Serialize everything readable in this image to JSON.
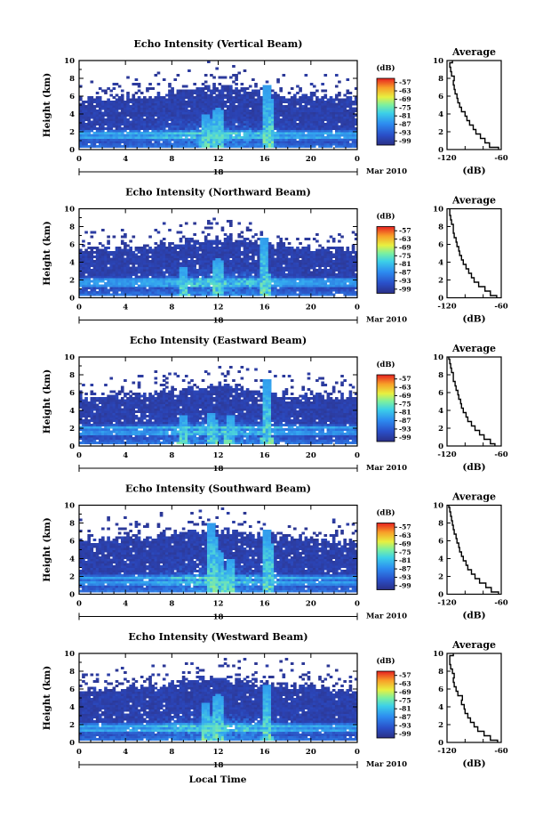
{
  "xlabel": "Local Time",
  "date_label": "Mar 2010",
  "chart_data": [
    {
      "type": "heatmap",
      "title": "Echo Intensity (Vertical Beam)",
      "ylabel": "Height (km)",
      "xlim": [
        0,
        24
      ],
      "ylim": [
        0,
        10
      ],
      "xticks": [
        "0",
        "4",
        "8",
        "12",
        "16",
        "20",
        "0"
      ],
      "yticks": [
        "0",
        "2",
        "4",
        "6",
        "8",
        "10"
      ],
      "day_label": "18",
      "colorbar": {
        "unit": "(dB)",
        "ticks": [
          "-57",
          "-63",
          "-69",
          "-75",
          "-81",
          "-87",
          "-93",
          "-99"
        ]
      },
      "profile": {
        "title": "Average",
        "xlabel": "(dB)",
        "xticks": [
          "-120",
          "-60"
        ],
        "xlim": [
          -120,
          -60
        ],
        "ylim": [
          0,
          10
        ],
        "yticks": [
          "0",
          "2",
          "4",
          "6",
          "8",
          "10"
        ],
        "height": [
          0,
          0.5,
          1,
          1.5,
          2,
          2.5,
          3,
          3.5,
          4,
          4.5,
          5,
          5.5,
          6,
          6.5,
          7,
          7.5,
          8,
          8.5,
          9,
          9.5,
          10
        ],
        "db": [
          -63,
          -73,
          -78,
          -83,
          -88,
          -91,
          -95,
          -98,
          -100,
          -104,
          -106,
          -108,
          -109,
          -111,
          -112,
          -113,
          -112,
          -115,
          -116,
          -117,
          -114
        ]
      },
      "features": {
        "base": 0.4,
        "top": 6.8,
        "bands": [
          1.4,
          1.9
        ],
        "plumes": [
          [
            10.9,
            4
          ],
          [
            11.5,
            3.5
          ],
          [
            12,
            4.8
          ],
          [
            16.3,
            7.2
          ]
        ]
      }
    },
    {
      "type": "heatmap",
      "title": "Echo Intensity (Northward Beam)",
      "ylabel": "Height (km)",
      "xlim": [
        0,
        24
      ],
      "ylim": [
        0,
        10
      ],
      "xticks": [
        "0",
        "4",
        "8",
        "12",
        "16",
        "20",
        "0"
      ],
      "yticks": [
        "0",
        "2",
        "4",
        "6",
        "8",
        "10"
      ],
      "day_label": "18",
      "colorbar": {
        "unit": "(dB)",
        "ticks": [
          "-57",
          "-63",
          "-69",
          "-75",
          "-81",
          "-87",
          "-93",
          "-99"
        ]
      },
      "profile": {
        "title": "Average",
        "xlabel": "(dB)",
        "xticks": [
          "-120",
          "-60"
        ],
        "xlim": [
          -120,
          -60
        ],
        "ylim": [
          0,
          10
        ],
        "yticks": [
          "0",
          "2",
          "4",
          "6",
          "8",
          "10"
        ],
        "height": [
          0,
          0.5,
          1,
          1.5,
          2,
          2.5,
          3,
          3.5,
          4,
          4.5,
          5,
          5.5,
          6,
          6.5,
          7,
          7.5,
          8,
          8.5,
          9,
          9.5,
          10
        ],
        "db": [
          -65,
          -72,
          -78,
          -85,
          -90,
          -93,
          -96,
          -99,
          -102,
          -104,
          -106,
          -107,
          -109,
          -110,
          -112,
          -113,
          -113,
          -115,
          -116,
          -117,
          -117
        ]
      },
      "features": {
        "base": 0.4,
        "top": 6.5,
        "bands": [
          1.5,
          2.0
        ],
        "plumes": [
          [
            9,
            3.5
          ],
          [
            12,
            4.5
          ],
          [
            16,
            6.8
          ]
        ]
      }
    },
    {
      "type": "heatmap",
      "title": "Echo Intensity (Eastward Beam)",
      "ylabel": "Height (km)",
      "xlim": [
        0,
        24
      ],
      "ylim": [
        0,
        10
      ],
      "xticks": [
        "0",
        "4",
        "8",
        "12",
        "16",
        "20",
        "0"
      ],
      "yticks": [
        "0",
        "2",
        "4",
        "6",
        "8",
        "10"
      ],
      "day_label": "18",
      "colorbar": {
        "unit": "(dB)",
        "ticks": [
          "-57",
          "-63",
          "-69",
          "-75",
          "-81",
          "-87",
          "-93",
          "-99"
        ]
      },
      "profile": {
        "title": "Average",
        "xlabel": "(dB)",
        "xticks": [
          "-120",
          "-60"
        ],
        "xlim": [
          -120,
          -60
        ],
        "ylim": [
          0,
          10
        ],
        "yticks": [
          "0",
          "2",
          "4",
          "6",
          "8",
          "10"
        ],
        "height": [
          0,
          0.5,
          1,
          1.5,
          2,
          2.5,
          3,
          3.5,
          4,
          4.5,
          5,
          5.5,
          6,
          6.5,
          7,
          7.5,
          8,
          8.5,
          9,
          9.5,
          10
        ],
        "db": [
          -67,
          -72,
          -79,
          -84,
          -89,
          -93,
          -97,
          -99,
          -102,
          -104,
          -105,
          -107,
          -108,
          -110,
          -111,
          -113,
          -113,
          -115,
          -116,
          -117,
          -118
        ]
      },
      "features": {
        "base": 0.4,
        "top": 6.5,
        "bands": [
          1.5,
          2.1
        ],
        "plumes": [
          [
            9,
            3.5
          ],
          [
            11.5,
            3.8
          ],
          [
            13,
            3.5
          ],
          [
            16.2,
            7.5
          ]
        ]
      }
    },
    {
      "type": "heatmap",
      "title": "Echo Intensity (Southward Beam)",
      "ylabel": "Height (km)",
      "xlim": [
        0,
        24
      ],
      "ylim": [
        0,
        10
      ],
      "xticks": [
        "0",
        "4",
        "8",
        "12",
        "16",
        "20",
        "0"
      ],
      "yticks": [
        "0",
        "2",
        "4",
        "6",
        "8",
        "10"
      ],
      "day_label": "18",
      "colorbar": {
        "unit": "(dB)",
        "ticks": [
          "-57",
          "-63",
          "-69",
          "-75",
          "-81",
          "-87",
          "-93",
          "-99"
        ]
      },
      "profile": {
        "title": "Average",
        "xlabel": "(dB)",
        "xticks": [
          "-120",
          "-60"
        ],
        "xlim": [
          -120,
          -60
        ],
        "ylim": [
          0,
          10
        ],
        "yticks": [
          "0",
          "2",
          "4",
          "6",
          "8",
          "10"
        ],
        "height": [
          0,
          0.5,
          1,
          1.5,
          2,
          2.5,
          3,
          3.5,
          4,
          4.5,
          5,
          5.5,
          6,
          6.5,
          7,
          7.5,
          8,
          8.5,
          9,
          9.5,
          10
        ],
        "db": [
          -63,
          -71,
          -77,
          -84,
          -89,
          -93,
          -97,
          -99,
          -102,
          -104,
          -106,
          -107,
          -109,
          -110,
          -112,
          -113,
          -114,
          -115,
          -116,
          -117,
          -118
        ]
      },
      "features": {
        "base": 0.4,
        "top": 7.0,
        "bands": [
          1.3,
          1.9
        ],
        "plumes": [
          [
            11.5,
            8
          ],
          [
            12,
            5
          ],
          [
            13,
            4
          ],
          [
            16.3,
            7.2
          ]
        ]
      }
    },
    {
      "type": "heatmap",
      "title": "Echo Intensity (Westward Beam)",
      "ylabel": "Height (km)",
      "xlim": [
        0,
        24
      ],
      "ylim": [
        0,
        10
      ],
      "xticks": [
        "0",
        "4",
        "8",
        "12",
        "16",
        "20",
        "0"
      ],
      "yticks": [
        "0",
        "2",
        "4",
        "6",
        "8",
        "10"
      ],
      "day_label": "18",
      "colorbar": {
        "unit": "(dB)",
        "ticks": [
          "-57",
          "-63",
          "-69",
          "-75",
          "-81",
          "-87",
          "-93",
          "-99"
        ]
      },
      "profile": {
        "title": "Average",
        "xlabel": "(dB)",
        "xticks": [
          "-120",
          "-60"
        ],
        "xlim": [
          -120,
          -60
        ],
        "ylim": [
          0,
          10
        ],
        "yticks": [
          "0",
          "2",
          "4",
          "6",
          "8",
          "10"
        ],
        "height": [
          0,
          0.5,
          1,
          1.5,
          2,
          2.5,
          3,
          3.5,
          4,
          4.5,
          5,
          5.5,
          6,
          6.5,
          7,
          7.5,
          8,
          8.5,
          9,
          9.5,
          10
        ],
        "db": [
          -64,
          -72,
          -79,
          -86,
          -90,
          -94,
          -97,
          -100,
          -101,
          -104,
          -103,
          -108,
          -110,
          -112,
          -113,
          -112,
          -114,
          -116,
          -117,
          -117,
          -113
        ]
      },
      "features": {
        "base": 0.4,
        "top": 7.0,
        "bands": [
          1.4,
          1.9
        ],
        "plumes": [
          [
            11,
            4.5
          ],
          [
            12,
            5.5
          ],
          [
            16.2,
            6.5
          ]
        ]
      }
    }
  ]
}
